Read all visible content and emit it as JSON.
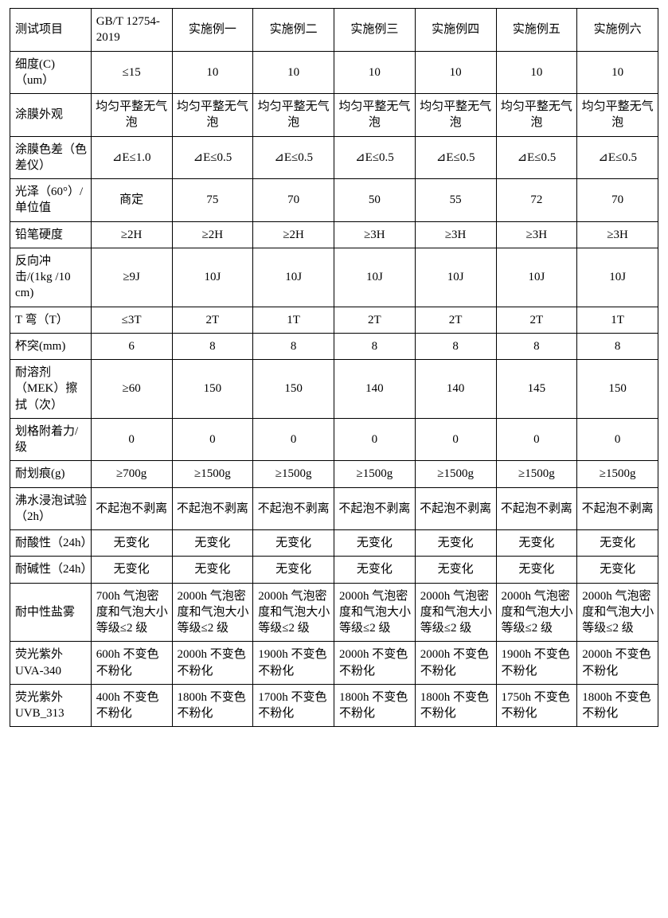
{
  "table": {
    "columns": [
      "测试项目",
      "GB/T 12754-2019",
      "实施例一",
      "实施例二",
      "实施例三",
      "实施例四",
      "实施例五",
      "实施例六"
    ],
    "rows": [
      {
        "label": "细度(C)（um）",
        "cells": [
          "≤15",
          "10",
          "10",
          "10",
          "10",
          "10",
          "10"
        ]
      },
      {
        "label": "涂膜外观",
        "cells": [
          "均匀平整无气泡",
          "均匀平整无气泡",
          "均匀平整无气泡",
          "均匀平整无气泡",
          "均匀平整无气泡",
          "均匀平整无气泡",
          "均匀平整无气泡"
        ]
      },
      {
        "label": "涂膜色差（色差仪）",
        "cells": [
          "⊿E≤1.0",
          "⊿E≤0.5",
          "⊿E≤0.5",
          "⊿E≤0.5",
          "⊿E≤0.5",
          "⊿E≤0.5",
          "⊿E≤0.5"
        ]
      },
      {
        "label": "光泽（60°）/单位值",
        "cells": [
          "商定",
          "75",
          "70",
          "50",
          "55",
          "72",
          "70"
        ]
      },
      {
        "label": "铅笔硬度",
        "cells": [
          "≥2H",
          "≥2H",
          "≥2H",
          "≥3H",
          "≥3H",
          "≥3H",
          "≥3H"
        ]
      },
      {
        "label": "反向冲击/(1kg /10 cm)",
        "cells": [
          "≥9J",
          "10J",
          "10J",
          "10J",
          "10J",
          "10J",
          "10J"
        ]
      },
      {
        "label": "T 弯（T）",
        "cells": [
          "≤3T",
          "2T",
          "1T",
          "2T",
          "2T",
          "2T",
          "1T"
        ]
      },
      {
        "label": "杯突(mm)",
        "cells": [
          "6",
          "8",
          "8",
          "8",
          "8",
          "8",
          "8"
        ]
      },
      {
        "label": "耐溶剂（MEK）擦拭（次）",
        "cells": [
          "≥60",
          "150",
          "150",
          "140",
          "140",
          "145",
          "150"
        ]
      },
      {
        "label": "划格附着力/级",
        "cells": [
          "0",
          "0",
          "0",
          "0",
          "0",
          "0",
          "0"
        ]
      },
      {
        "label": "耐划痕(g)",
        "cells": [
          "≥700g",
          "≥1500g",
          "≥1500g",
          "≥1500g",
          "≥1500g",
          "≥1500g",
          "≥1500g"
        ]
      },
      {
        "label": "沸水浸泡试验（2h）",
        "cells": [
          "不起泡不剥离",
          "不起泡不剥离",
          "不起泡不剥离",
          "不起泡不剥离",
          "不起泡不剥离",
          "不起泡不剥离",
          "不起泡不剥离"
        ]
      },
      {
        "label": "耐酸性（24h）",
        "cells": [
          "无变化",
          "无变化",
          "无变化",
          "无变化",
          "无变化",
          "无变化",
          "无变化"
        ]
      },
      {
        "label": "耐碱性（24h）",
        "cells": [
          "无变化",
          "无变化",
          "无变化",
          "无变化",
          "无变化",
          "无变化",
          "无变化"
        ]
      },
      {
        "label": "耐中性盐雾",
        "cells": [
          "700h 气泡密度和气泡大小等级≤2 级",
          "2000h 气泡密度和气泡大小等级≤2 级",
          "2000h 气泡密度和气泡大小等级≤2 级",
          "2000h 气泡密度和气泡大小等级≤2 级",
          "2000h 气泡密度和气泡大小等级≤2 级",
          "2000h 气泡密度和气泡大小等级≤2 级",
          "2000h 气泡密度和气泡大小等级≤2 级"
        ]
      },
      {
        "label": "荧光紫外UVA-340",
        "cells": [
          "600h 不变色不粉化",
          "2000h 不变色不粉化",
          "1900h 不变色不粉化",
          "2000h 不变色不粉化",
          "2000h 不变色不粉化",
          "1900h 不变色不粉化",
          "2000h 不变色不粉化"
        ]
      },
      {
        "label": "荧光紫外UVB_313",
        "cells": [
          "400h 不变色不粉化",
          "1800h 不变色不粉化",
          "1700h 不变色不粉化",
          "1800h 不变色不粉化",
          "1800h 不变色不粉化",
          "1750h 不变色不粉化",
          "1800h 不变色不粉化"
        ]
      }
    ],
    "col_widths_pct": [
      12,
      12,
      12,
      12,
      12,
      12,
      12,
      12
    ],
    "border_color": "#000000",
    "background_color": "#ffffff",
    "text_color": "#000000",
    "font_size_pt": 11
  }
}
